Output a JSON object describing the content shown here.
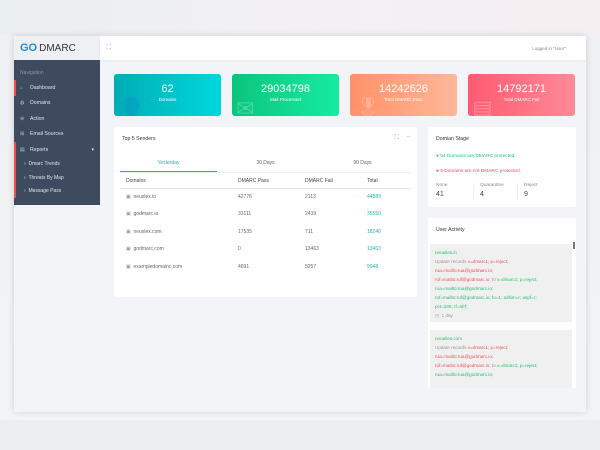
{
  "logo": {
    "text1": "GO",
    "text2": "DMARC"
  },
  "header": {
    "logged_in": "Logged  in \"User\""
  },
  "sidebar": {
    "nav_label": "Navigation",
    "items": [
      {
        "label": "Dashboard",
        "icon": "home-icon"
      },
      {
        "label": "Domains",
        "icon": "globe-icon"
      },
      {
        "label": "Action",
        "icon": "action-icon"
      },
      {
        "label": "Email Sources",
        "icon": "plus-square-icon"
      },
      {
        "label": "Reports",
        "icon": "report-icon"
      }
    ],
    "sub_items": [
      "Dmarc Trends",
      "Threats By Map",
      "Message Pass"
    ]
  },
  "cards": [
    {
      "value": "62",
      "label": "Domains",
      "color": "#00bfc9"
    },
    {
      "value": "29034798",
      "label": "Mail Processed",
      "color": "#10d98d"
    },
    {
      "value": "14242626",
      "label": "Total DMARC Pass",
      "color": "#ff9d72"
    },
    {
      "value": "14792171",
      "label": "Total DMARC Fail",
      "color": "#ff6b7d"
    }
  ],
  "senders": {
    "title": "Top 5 Senders",
    "tabs": [
      "Yesterday",
      "30 Days",
      "90 Days"
    ],
    "columns": [
      "Domains",
      "DMARC Pass",
      "DMARC Fail",
      "Total"
    ],
    "rows": [
      [
        "neuxlex.io",
        "42776",
        "2113",
        "44889"
      ],
      [
        "godmarc.io",
        "33111",
        "2439",
        "35550"
      ],
      [
        "neuxlex.com",
        "17535",
        "711",
        "18246"
      ],
      [
        "godmarc.com",
        "0",
        "13463",
        "13463"
      ],
      [
        "exampledomainc.com",
        "4691",
        "5257",
        "9948"
      ]
    ]
  },
  "stage": {
    "title": "Domian Stage",
    "protected": "54 Domains are DMARC protected.",
    "not_protected": "9 Domains are not DMARC protected.",
    "stats": [
      {
        "k": "None",
        "v": "41"
      },
      {
        "k": "Quarantine",
        "v": "4"
      },
      {
        "k": "Reject",
        "v": "9"
      }
    ]
  },
  "activity": {
    "title": "User Activity",
    "items": [
      {
        "domain": "neualies.in",
        "prefix": "Update records ",
        "old1": "v=dmarc1; p=reject;",
        "old2": "rua=mailto:rua@godmarc.io;",
        "old3": "ruf=mailto:ruf@godmarc.io;",
        "to": " to ",
        "new1": "v=dmarc1; p=reject;",
        "new2": "rua=mailto:rua@godmarc.io;",
        "new3": "ruf=mailto:ruf@godmarc.io; fo=1; adkim=r; aspf=r;",
        "new4": "pct=100; rf=afrf;",
        "time": "1 day"
      },
      {
        "domain": "neualies.com",
        "prefix": "Update records ",
        "old1": "v=dmarc1; p=reject;",
        "old2": "rua=mailto:rua@godmarc.io;",
        "old3": "ruf=mailto:ruf@godmarc.io;",
        "to": " to ",
        "new1": "v=dmarc1; p=reject;",
        "new2": "rua=mailto:rua@godmarc.io;"
      }
    ]
  }
}
